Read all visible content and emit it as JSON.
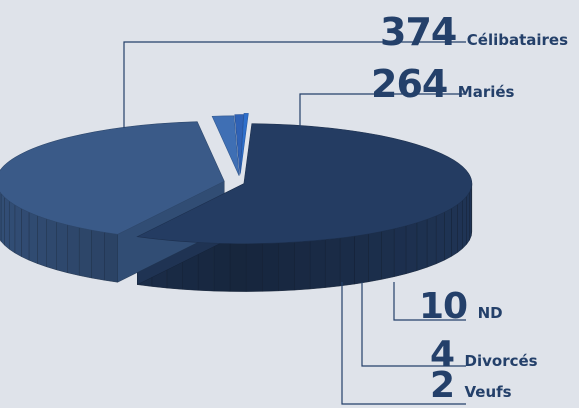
{
  "chart_data": {
    "type": "pie",
    "slices": [
      {
        "label": "Célibataires",
        "value": 374,
        "color": "#243c62"
      },
      {
        "label": "Mariés",
        "value": 264,
        "color": "#3a5a88"
      },
      {
        "label": "ND",
        "value": 10,
        "color": "#3f6fb4"
      },
      {
        "label": "Divorcés",
        "value": 4,
        "color": "#2f62b6"
      },
      {
        "label": "Veufs",
        "value": 2,
        "color": "#2e6fcc"
      }
    ],
    "legend": "none",
    "style": "3d-exploded"
  }
}
